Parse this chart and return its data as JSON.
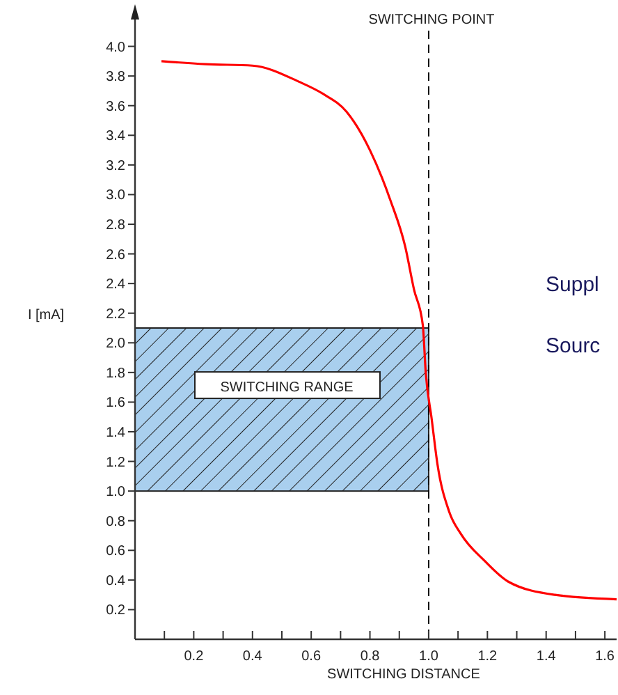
{
  "chart_data": {
    "type": "line",
    "xlabel": "SWITCHING DISTANCE",
    "ylabel": "I [mA]",
    "xlim": [
      0,
      1.64
    ],
    "ylim": [
      0,
      4.2
    ],
    "xticks": [
      {
        "value": 0.1,
        "label": null
      },
      0.2,
      {
        "value": 0.3,
        "label": null
      },
      0.4,
      {
        "value": 0.5,
        "label": null
      },
      0.6,
      {
        "value": 0.7,
        "label": null
      },
      0.8,
      {
        "value": 0.9,
        "label": null
      },
      {
        "value": 1,
        "label": "1.0"
      },
      {
        "value": 1.1,
        "label": null
      },
      1.2,
      {
        "value": 1.3,
        "label": null
      },
      1.4,
      {
        "value": 1.5,
        "label": null
      },
      1.6
    ],
    "yticks": [
      0.2,
      0.4,
      0.6,
      0.8,
      {
        "value": 1,
        "label": "1.0"
      },
      1.2,
      1.4,
      1.6,
      1.8,
      {
        "value": 2,
        "label": "2.0"
      },
      2.2,
      2.4,
      2.6,
      2.8,
      {
        "value": 3,
        "label": "3.0"
      },
      3.2,
      3.4,
      3.6,
      3.8,
      {
        "value": 4,
        "label": "4.0"
      }
    ],
    "grid": false,
    "marker": "none",
    "line_style": "solid",
    "x": [
      0.09,
      0.24,
      0.4,
      0.56,
      0.64,
      0.72,
      0.8,
      0.87,
      0.92,
      0.95,
      0.98,
      0.99,
      1.01,
      1.03,
      1.07,
      1.11,
      1.19,
      1.27,
      1.43,
      1.64
    ],
    "series": [
      {
        "color": "#ff0000",
        "values": [
          3.9,
          3.88,
          3.87,
          3.76,
          3.68,
          3.56,
          3.3,
          2.96,
          2.65,
          2.36,
          2.12,
          1.8,
          1.49,
          1.18,
          0.86,
          0.71,
          0.53,
          0.39,
          0.3,
          0.27
        ]
      }
    ],
    "ref_lines": [
      {
        "axis": "x",
        "value": 1,
        "label": "SWITCHING POINT",
        "color": "#000000",
        "line_style": "dashed"
      }
    ],
    "bands": [
      {
        "axis": "y",
        "from": 1,
        "to": 2.1,
        "label": "SWITCHING RANGE",
        "color": "#a9cfee"
      }
    ],
    "annotations": [
      "Suppl",
      "Sourc"
    ]
  }
}
